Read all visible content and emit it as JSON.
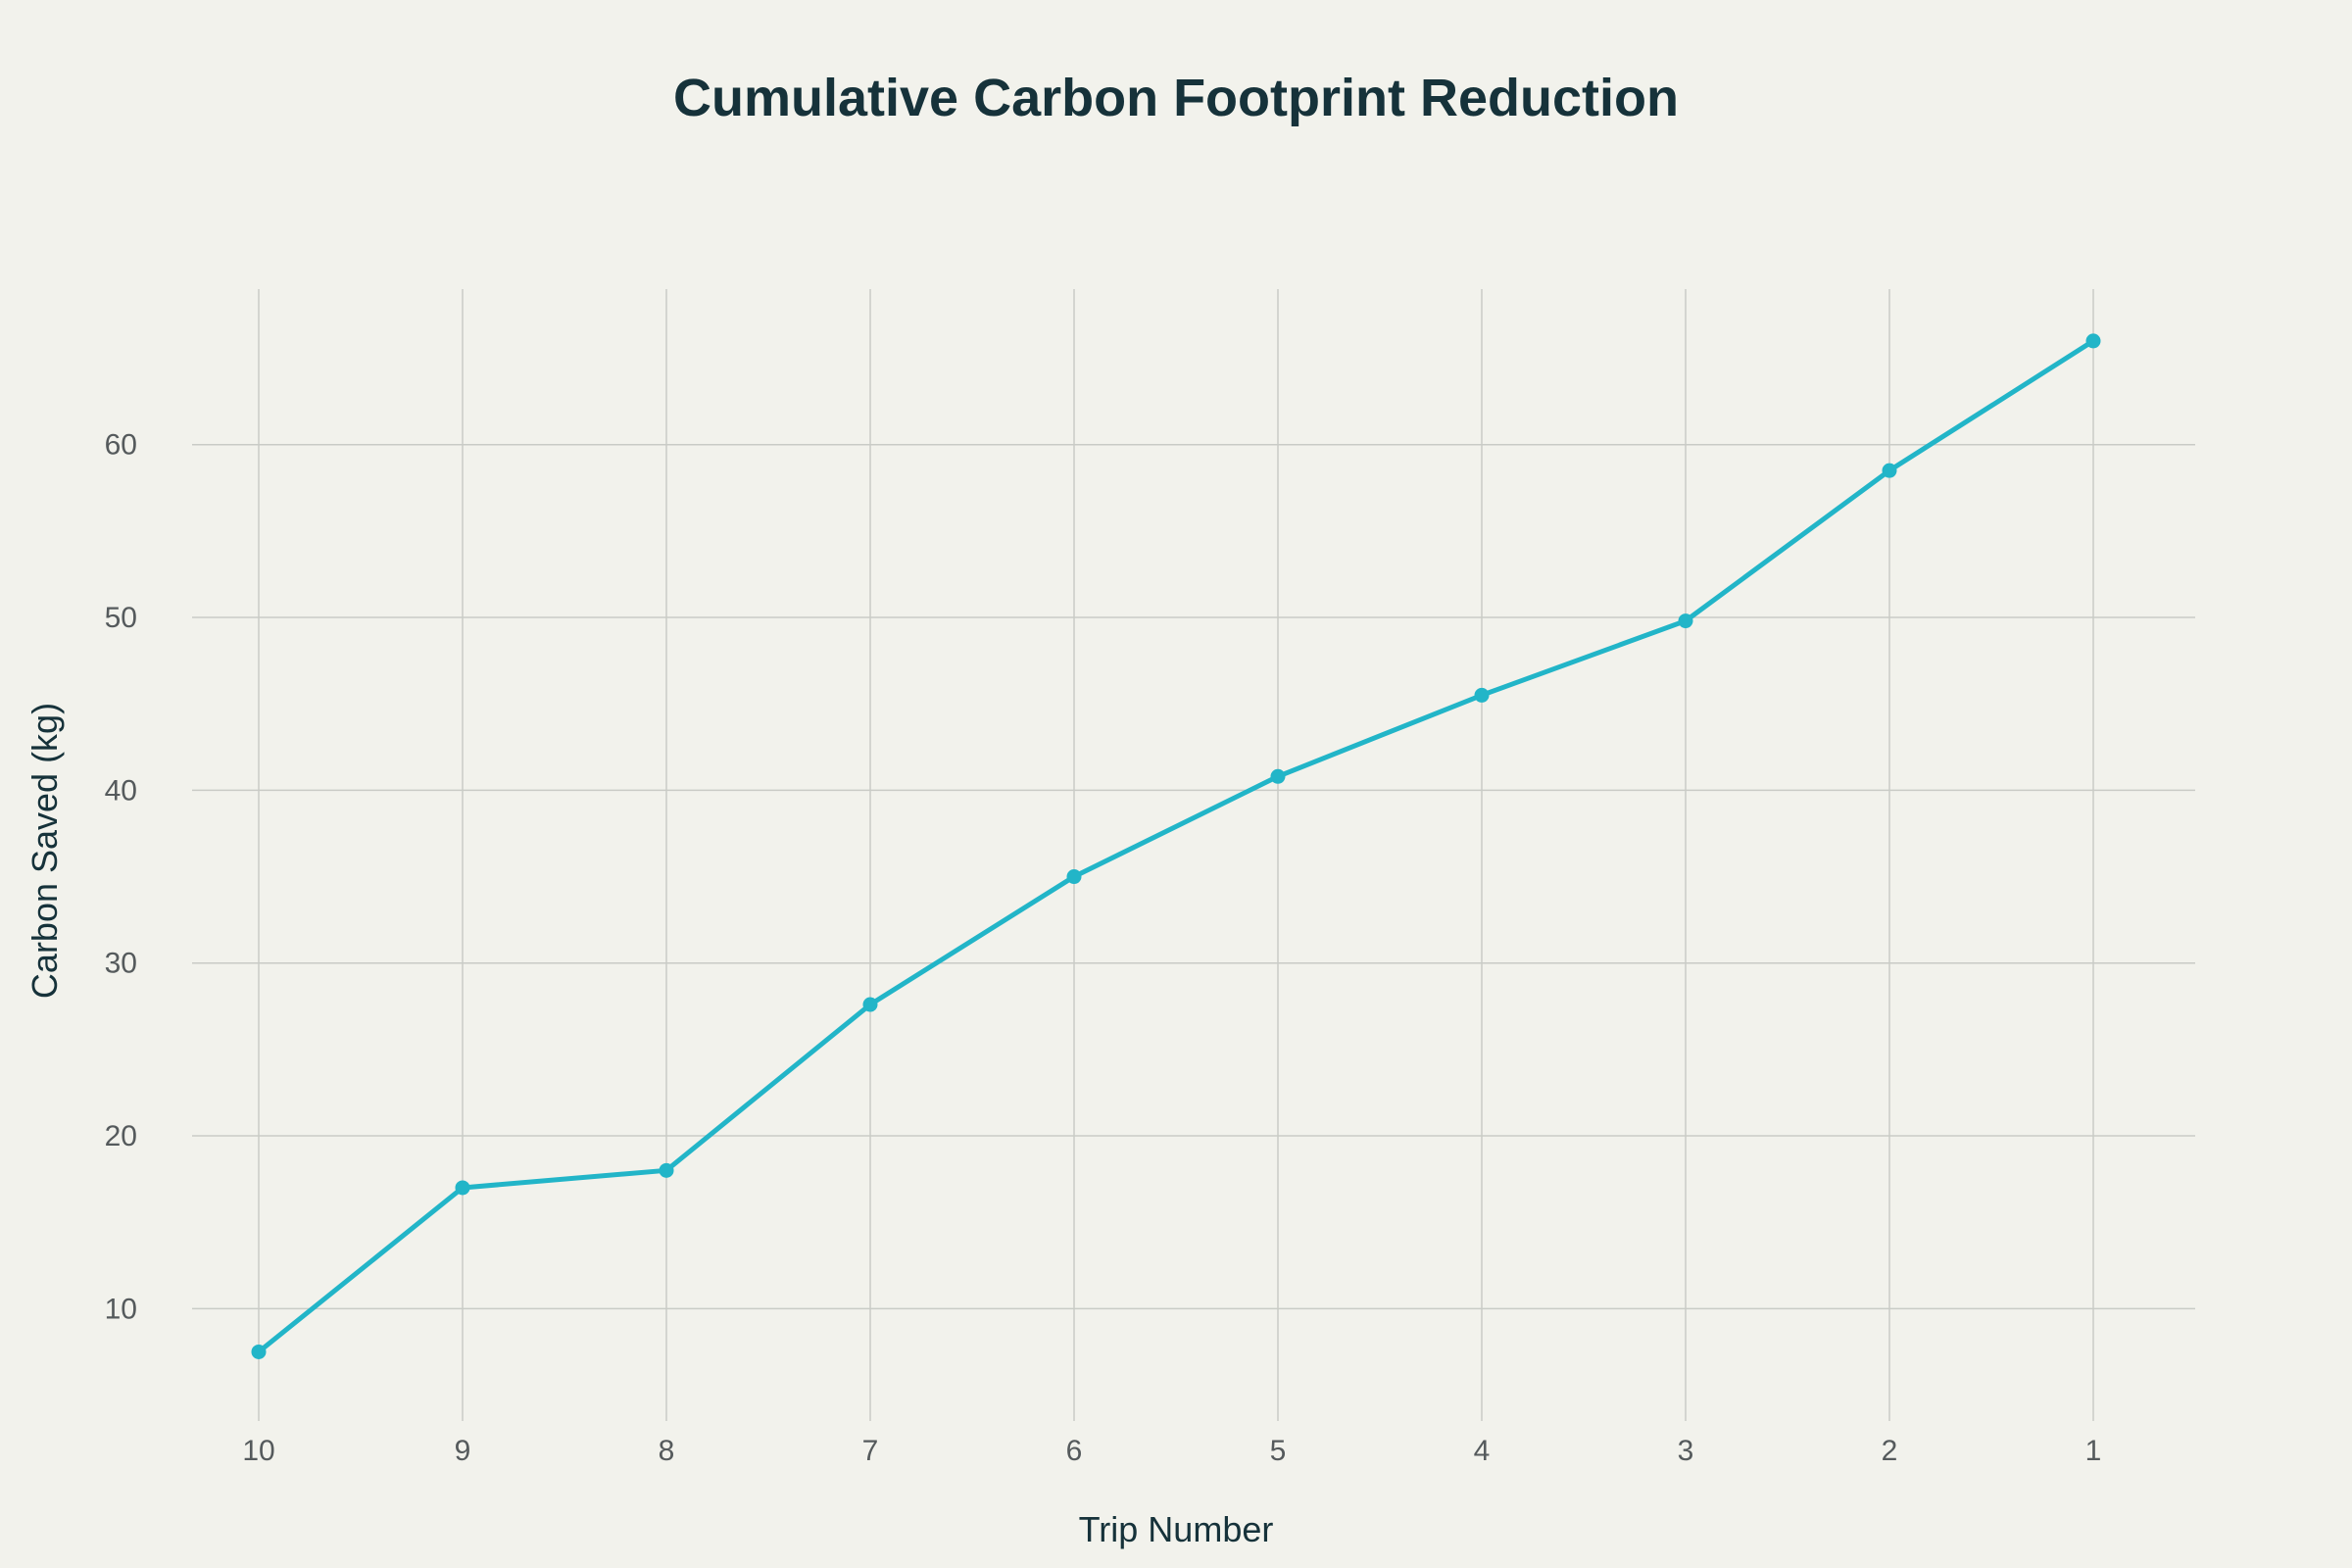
{
  "chart_data": {
    "type": "line",
    "title": "Cumulative Carbon Footprint Reduction",
    "xlabel": "Trip Number",
    "ylabel": "Carbon Saved (kg)",
    "categories": [
      "10",
      "9",
      "8",
      "7",
      "6",
      "5",
      "4",
      "3",
      "2",
      "1"
    ],
    "series": [
      {
        "values": [
          7.5,
          17.0,
          18.0,
          27.6,
          35.0,
          40.8,
          45.5,
          49.8,
          58.5,
          66.0
        ]
      }
    ],
    "ylim": [
      3.5,
      69
    ],
    "yticks": [
      10,
      20,
      30,
      40,
      50,
      60
    ],
    "grid": true,
    "legend": "none",
    "colors": {
      "line": "#22b5c8",
      "background": "#f2f2ec",
      "grid": "#c9cbc6",
      "title": "#16323a"
    }
  }
}
